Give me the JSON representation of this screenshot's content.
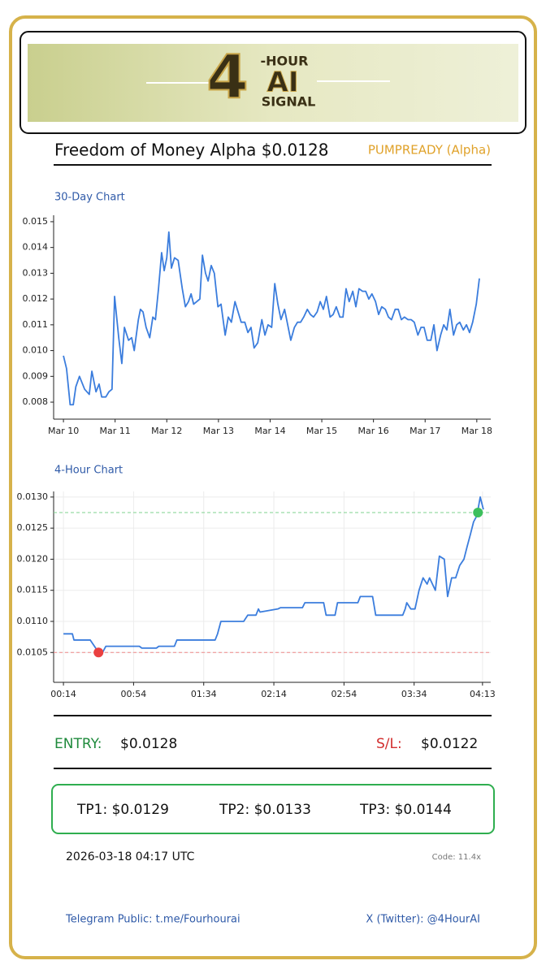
{
  "logo": {
    "numeral": "4",
    "top": "-HOUR",
    "middle": "AI",
    "bottom": "SIGNAL"
  },
  "header": {
    "title": "Freedom of Money Alpha $0.0128",
    "tag": "PUMPREADY (Alpha)"
  },
  "chart_data": [
    {
      "type": "line",
      "title": "30-Day Chart",
      "color": "#3b7ddd",
      "grid": false,
      "x": [
        0,
        0.06,
        0.13,
        0.19,
        0.24,
        0.31,
        0.41,
        0.5,
        0.55,
        0.63,
        0.69,
        0.74,
        0.82,
        0.88,
        0.94,
        0.99,
        1.07,
        1.13,
        1.18,
        1.26,
        1.32,
        1.37,
        1.45,
        1.49,
        1.54,
        1.6,
        1.67,
        1.73,
        1.78,
        1.84,
        1.9,
        1.95,
        2.0,
        2.04,
        2.09,
        2.15,
        2.22,
        2.3,
        2.36,
        2.42,
        2.47,
        2.52,
        2.58,
        2.64,
        2.69,
        2.75,
        2.8,
        2.86,
        2.92,
        2.99,
        3.05,
        3.13,
        3.19,
        3.25,
        3.32,
        3.38,
        3.44,
        3.51,
        3.57,
        3.63,
        3.69,
        3.76,
        3.84,
        3.9,
        3.96,
        4.03,
        4.09,
        4.15,
        4.21,
        4.28,
        4.34,
        4.4,
        4.47,
        4.53,
        4.59,
        4.65,
        4.72,
        4.78,
        4.84,
        4.91,
        4.97,
        5.03,
        5.09,
        5.16,
        5.22,
        5.28,
        5.35,
        5.41,
        5.47,
        5.53,
        5.6,
        5.66,
        5.72,
        5.79,
        5.85,
        5.91,
        5.97,
        6.04,
        6.1,
        6.16,
        6.23,
        6.29,
        6.35,
        6.42,
        6.48,
        6.54,
        6.6,
        6.67,
        6.73,
        6.79,
        6.86,
        6.92,
        6.98,
        7.04,
        7.11,
        7.17,
        7.23,
        7.3,
        7.36,
        7.42,
        7.48,
        7.55,
        7.61,
        7.67,
        7.74,
        7.8,
        7.86,
        7.92,
        7.99,
        8.05
      ],
      "values": [
        0.0098,
        0.0093,
        0.0079,
        0.0079,
        0.0086,
        0.009,
        0.0085,
        0.0083,
        0.0092,
        0.0084,
        0.0087,
        0.0082,
        0.0082,
        0.0084,
        0.0085,
        0.0121,
        0.0105,
        0.0095,
        0.0109,
        0.0104,
        0.0105,
        0.01,
        0.0112,
        0.0116,
        0.0115,
        0.0109,
        0.0105,
        0.0113,
        0.0112,
        0.0124,
        0.0138,
        0.0131,
        0.0136,
        0.0146,
        0.0132,
        0.0136,
        0.0135,
        0.0124,
        0.0117,
        0.0119,
        0.0122,
        0.0118,
        0.0119,
        0.012,
        0.0137,
        0.013,
        0.0127,
        0.0133,
        0.013,
        0.0117,
        0.0118,
        0.0106,
        0.0113,
        0.0111,
        0.0119,
        0.0115,
        0.0111,
        0.0111,
        0.0107,
        0.0109,
        0.0101,
        0.0103,
        0.0112,
        0.0106,
        0.011,
        0.0109,
        0.0126,
        0.0118,
        0.0112,
        0.0116,
        0.011,
        0.0104,
        0.0109,
        0.0111,
        0.0111,
        0.0113,
        0.0116,
        0.0114,
        0.0113,
        0.0115,
        0.0119,
        0.0116,
        0.0121,
        0.0113,
        0.0114,
        0.0117,
        0.0113,
        0.0113,
        0.0124,
        0.0119,
        0.0123,
        0.0117,
        0.0124,
        0.0123,
        0.0123,
        0.012,
        0.0122,
        0.0119,
        0.0114,
        0.0117,
        0.0116,
        0.0113,
        0.0112,
        0.0116,
        0.0116,
        0.0112,
        0.0113,
        0.0112,
        0.0112,
        0.0111,
        0.0106,
        0.0109,
        0.0109,
        0.0104,
        0.0104,
        0.011,
        0.01,
        0.0106,
        0.011,
        0.0108,
        0.0116,
        0.0106,
        0.011,
        0.0111,
        0.0108,
        0.011,
        0.0107,
        0.0111,
        0.0118,
        0.0128
      ],
      "xlim": [
        -0.19,
        8.27
      ],
      "ylim": [
        0.00734,
        0.01525
      ],
      "xticks": [
        {
          "value": 0,
          "label": "Mar 10"
        },
        {
          "value": 1,
          "label": "Mar 11"
        },
        {
          "value": 2,
          "label": "Mar 12"
        },
        {
          "value": 3,
          "label": "Mar 13"
        },
        {
          "value": 4,
          "label": "Mar 14"
        },
        {
          "value": 5,
          "label": "Mar 15"
        },
        {
          "value": 6,
          "label": "Mar 16"
        },
        {
          "value": 7,
          "label": "Mar 17"
        },
        {
          "value": 8,
          "label": "Mar 18"
        }
      ],
      "yticks": [
        0.008,
        0.009,
        {
          "value": 0.01,
          "label": "0.010"
        },
        0.011,
        0.012,
        0.013,
        0.014,
        0.015
      ]
    },
    {
      "type": "line",
      "title": "4-Hour Chart",
      "color": "#3b7ddd",
      "grid": true,
      "x": [
        14,
        19.1,
        20.0,
        23.8,
        25.2,
        29.3,
        31.7,
        34.0,
        36.3,
        38.2,
        42.4,
        57.3,
        58.7,
        67.0,
        68.4,
        77.3,
        78.7,
        100.5,
        101.9,
        103.8,
        116.8,
        119.1,
        123.8,
        125.2,
        126.1,
        136.3,
        137.7,
        150.3,
        151.7,
        162.4,
        163.8,
        168.9,
        170.3,
        181.9,
        183.3,
        190.3,
        192.1,
        193.5,
        207.5,
        208.9,
        209.8,
        212.1,
        214.5,
        216.8,
        219.1,
        221.4,
        222.8,
        226.1,
        228.4,
        231.2,
        233.1,
        235.4,
        237.7,
        240.0,
        242.4,
        244.2,
        246.1,
        247.9,
        249.8,
        251.7,
        253.5
      ],
      "values": [
        0.0108,
        0.0108,
        0.0107,
        0.0107,
        0.0107,
        0.0107,
        0.0106,
        0.0105,
        0.0105,
        0.0106,
        0.0106,
        0.0106,
        0.01057,
        0.01057,
        0.0106,
        0.0106,
        0.0107,
        0.0107,
        0.0108,
        0.011,
        0.011,
        0.0111,
        0.0111,
        0.0112,
        0.01115,
        0.0112,
        0.01122,
        0.01122,
        0.0113,
        0.0113,
        0.0111,
        0.0111,
        0.0113,
        0.0113,
        0.0114,
        0.0114,
        0.0111,
        0.0111,
        0.0111,
        0.0112,
        0.0113,
        0.0112,
        0.0112,
        0.0115,
        0.0117,
        0.0116,
        0.0117,
        0.0115,
        0.01205,
        0.012,
        0.0114,
        0.0117,
        0.0117,
        0.0119,
        0.012,
        0.0122,
        0.0124,
        0.0126,
        0.0127,
        0.013,
        0.0128
      ],
      "xlim": [
        8.4,
        257.7
      ],
      "ylim": [
        0.01002,
        0.01309
      ],
      "xticks": [
        {
          "value": 14,
          "label": "00:14"
        },
        {
          "value": 54,
          "label": "00:54"
        },
        {
          "value": 94,
          "label": "01:34"
        },
        {
          "value": 134,
          "label": "02:14"
        },
        {
          "value": 174,
          "label": "02:54"
        },
        {
          "value": 214,
          "label": "03:34"
        },
        {
          "value": 253,
          "label": "04:13"
        }
      ],
      "yticks": [
        0.0105,
        {
          "value": 0.011,
          "label": "0.0110"
        },
        0.0115,
        {
          "value": 0.012,
          "label": "0.0120"
        },
        0.0125,
        {
          "value": 0.013,
          "label": "0.0130"
        }
      ],
      "reference_lines": [
        {
          "value": 0.01275,
          "color": "#7fd18f"
        },
        {
          "value": 0.0105,
          "color": "#f08a8a"
        }
      ],
      "markers": [
        {
          "x": 250.4,
          "y": 0.01275,
          "color": "#3cbf5c"
        },
        {
          "x": 34.0,
          "y": 0.0105,
          "color": "#ea4040"
        }
      ]
    }
  ],
  "levels": {
    "entry_label": "ENTRY:",
    "entry": "$0.0128",
    "sl_label": "S/L:",
    "sl": "$0.0122"
  },
  "targets": [
    "TP1: $0.0129",
    "TP2: $0.0133",
    "TP3: $0.0144"
  ],
  "timestamp": "2026-03-18 04:17 UTC",
  "code": "Code: 11.4x",
  "footer": {
    "telegram": "Telegram Public: t.me/Fourhourai",
    "twitter": "X (Twitter): @4HourAI"
  }
}
